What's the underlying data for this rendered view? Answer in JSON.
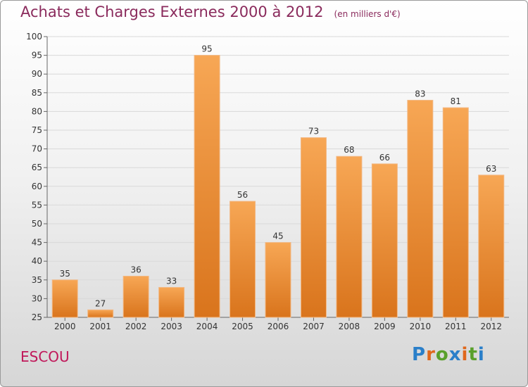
{
  "header": {
    "title": "Achats et Charges Externes 2000 à 2012",
    "unit": "(en milliers d'€)"
  },
  "footer": {
    "place": "ESCOU",
    "logo_text": "Proxiti"
  },
  "colors": {
    "title": "#8a2a5c",
    "place": "#c0185a",
    "bar_light": "#f7a755",
    "bar_dark": "#d9741c",
    "logo_letters": [
      "#2a7fc9",
      "#e0681c",
      "#5aa02c",
      "#2a7fc9",
      "#e0681c",
      "#5aa02c",
      "#2a7fc9"
    ]
  },
  "chart_data": {
    "type": "bar",
    "title": "Achats et Charges Externes 2000 à 2012",
    "subtitle": "(en milliers d'€)",
    "categories": [
      "2000",
      "2001",
      "2002",
      "2003",
      "2004",
      "2005",
      "2006",
      "2007",
      "2008",
      "2009",
      "2010",
      "2011",
      "2012"
    ],
    "values": [
      35,
      27,
      36,
      33,
      95,
      56,
      45,
      73,
      68,
      66,
      83,
      81,
      63
    ],
    "ylim": [
      25,
      100
    ],
    "yticks": [
      25,
      30,
      35,
      40,
      45,
      50,
      55,
      60,
      65,
      70,
      75,
      80,
      85,
      90,
      95,
      100
    ],
    "grid": true,
    "data_labels": true
  }
}
